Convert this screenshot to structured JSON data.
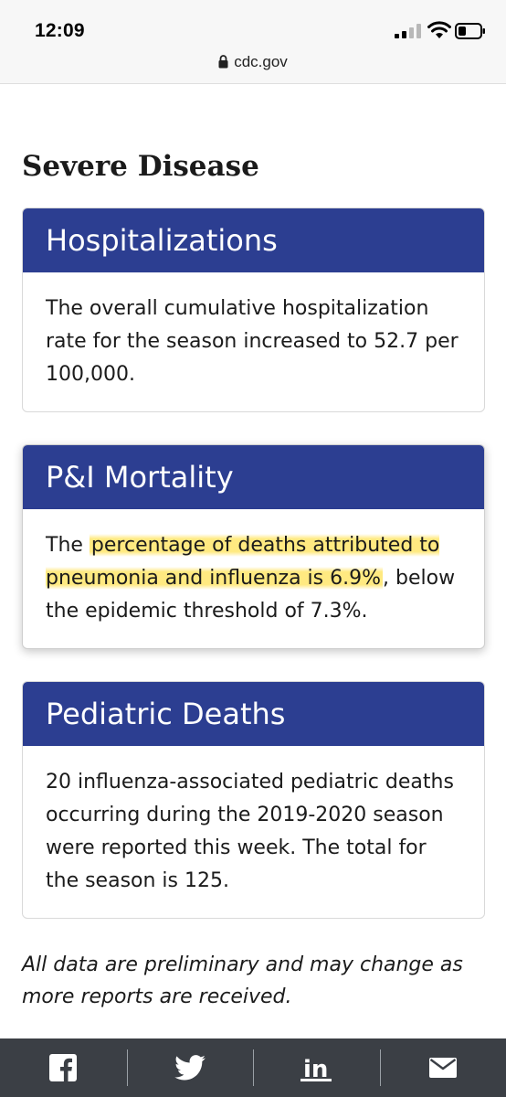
{
  "status_bar": {
    "time": "12:09",
    "url": "cdc.gov"
  },
  "section": {
    "title": "Severe Disease"
  },
  "cards": [
    {
      "title": "Hospitalizations",
      "body": "The overall cumulative hospitalization rate for the season increased to 52.7 per 100,000."
    },
    {
      "title": "P&I Mortality",
      "body_prefix": "The ",
      "body_highlight": "percentage of deaths attributed to pneumonia and influenza is 6.9%",
      "body_suffix": ", below the epidemic threshold of 7.3%."
    },
    {
      "title": "Pediatric Deaths",
      "body": "20 influenza-associated pediatric deaths occurring during the 2019-2020 season were reported this week. The total for the season is 125."
    }
  ],
  "footnote": "All data are preliminary and may change as more reports are received.",
  "share_bar": {
    "items": [
      "facebook-icon",
      "twitter-icon",
      "linkedin-icon",
      "email-icon"
    ]
  },
  "colors": {
    "card_header": "#2c3e91",
    "highlight": "#ffe150",
    "share_bar": "#3b3f45"
  }
}
